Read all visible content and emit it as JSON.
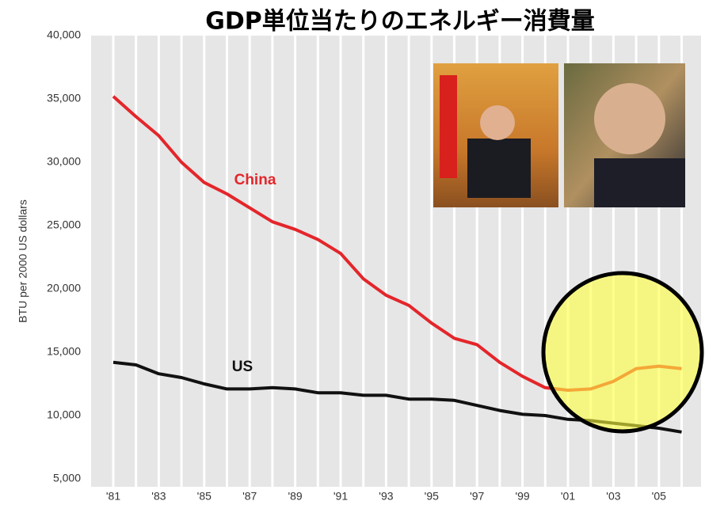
{
  "chart_data": {
    "type": "line",
    "title": "GDP単位当たりのエネルギー消費量",
    "y_label": "BTU per 2000 US dollars",
    "categories": [
      "'81",
      null,
      "'83",
      null,
      "'85",
      null,
      "'87",
      null,
      "'89",
      null,
      "'91",
      null,
      "'93",
      null,
      "'95",
      null,
      "'97",
      null,
      "'99",
      null,
      "'01",
      null,
      "'03",
      null,
      "'05",
      null
    ],
    "series": [
      {
        "name": "China",
        "color": "#e3262b",
        "values": [
          35200,
          33600,
          32100,
          30000,
          28400,
          27500,
          26400,
          25300,
          24700,
          23900,
          22800,
          20800,
          19500,
          18700,
          17300,
          16100,
          15600,
          14200,
          13100,
          12200,
          12000,
          12100,
          12700,
          13700,
          13900,
          13700
        ]
      },
      {
        "name": "US",
        "color": "#111111",
        "values": [
          14200,
          14000,
          13300,
          13000,
          12500,
          12100,
          12100,
          12200,
          12100,
          11800,
          11800,
          11600,
          11600,
          11300,
          11300,
          11200,
          10800,
          10400,
          10100,
          10000,
          9700,
          9600,
          9400,
          9200,
          9000,
          8700
        ]
      }
    ],
    "ylim": [
      5000,
      40000
    ],
    "yticks": [
      {
        "value": 5000,
        "label": "5,000"
      },
      {
        "value": 10000,
        "label": "10,000"
      },
      {
        "value": 15000,
        "label": "15,000"
      },
      {
        "value": 20000,
        "label": "20,000"
      },
      {
        "value": 25000,
        "label": "25,000"
      },
      {
        "value": 30000,
        "label": "30,000"
      },
      {
        "value": 35000,
        "label": "35,000"
      },
      {
        "value": 40000,
        "label": "40,000"
      }
    ],
    "grid": true
  }
}
